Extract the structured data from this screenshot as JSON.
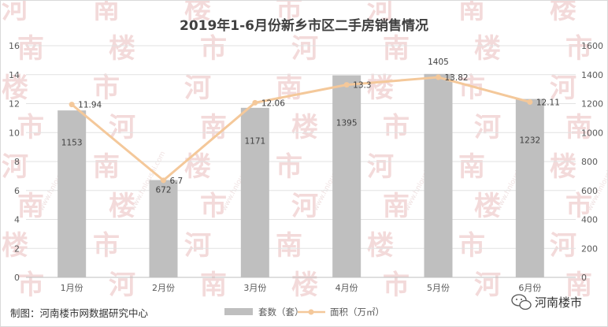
{
  "chart_data": {
    "type": "bar",
    "title": "2019年1-6月份新乡市区二手房销售情况",
    "categories": [
      "1月份",
      "2月份",
      "3月份",
      "4月份",
      "5月份",
      "6月份"
    ],
    "series": [
      {
        "name": "套数（套）",
        "type": "bar",
        "axis": "right",
        "color": "#bfbfbf",
        "values": [
          1153,
          672,
          1171,
          1395,
          1405,
          1232
        ]
      },
      {
        "name": "面积（万㎡）",
        "type": "line",
        "axis": "left",
        "color": "#f4c89a",
        "values": [
          11.94,
          6.7,
          12.06,
          13.3,
          13.82,
          12.11
        ]
      }
    ],
    "left_axis": {
      "min": 0,
      "max": 16,
      "step": 2,
      "ticks": [
        "0",
        "2",
        "4",
        "6",
        "8",
        "10",
        "12",
        "14",
        "16"
      ]
    },
    "right_axis": {
      "min": 0,
      "max": 1600,
      "step": 200,
      "ticks": [
        "0",
        "200",
        "400",
        "600",
        "800",
        "1000",
        "1200",
        "1400",
        "1600"
      ]
    },
    "data_labels": {
      "bars": [
        "1153",
        "672",
        "1171",
        "1395",
        "1405",
        "1232"
      ],
      "line": [
        "11.94",
        "6.7",
        "12.06",
        "13.3",
        "13.82",
        "12.11"
      ]
    },
    "grid": true,
    "legend_position": "bottom"
  },
  "footer": {
    "credit": "制图：河南楼市网数据研究中心",
    "brand": "河南楼市",
    "brand_icon": "wechat-icon"
  },
  "watermark": {
    "text": "河南楼市",
    "url": "www.hnloushi.com"
  }
}
